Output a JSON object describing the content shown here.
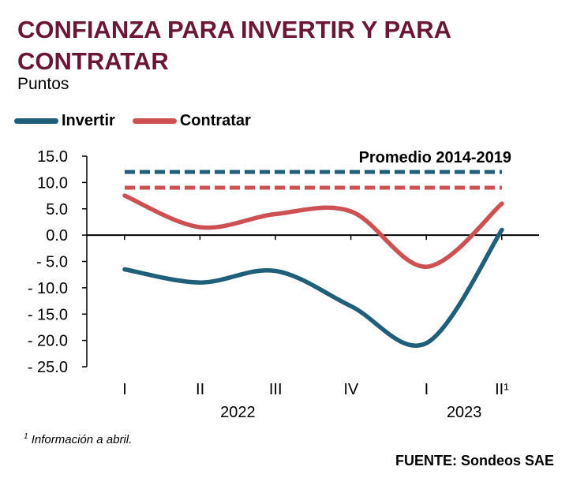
{
  "title": "CONFIANZA PARA INVERTIR Y PARA CONTRATAR",
  "subtitle": "Puntos",
  "footnote_mark": "1",
  "footnote_text": " Información a abril.",
  "source": "FUENTE: Sondeos SAE",
  "colors": {
    "title": "#6b1537",
    "invertir": "#1f5f7a",
    "contratar": "#cd5052"
  },
  "chart_data": {
    "type": "line",
    "categories": [
      "I",
      "II",
      "III",
      "IV",
      "I",
      "II¹"
    ],
    "years": [
      {
        "label": "2022",
        "span": [
          0,
          3
        ]
      },
      {
        "label": "2023",
        "span": [
          4,
          5
        ]
      }
    ],
    "series": [
      {
        "name": "Invertir",
        "color": "#1f5f7a",
        "values": [
          -6.5,
          -9.0,
          -6.8,
          -13.5,
          -20.5,
          1.0
        ]
      },
      {
        "name": "Contratar",
        "color": "#cd5052",
        "values": [
          7.5,
          1.5,
          4.0,
          4.5,
          -6.0,
          6.0
        ]
      }
    ],
    "averages": {
      "label": "Promedio 2014-2019",
      "lines": [
        {
          "series": "Invertir",
          "value": 12.0,
          "color": "#1f5f7a"
        },
        {
          "series": "Contratar",
          "value": 9.0,
          "color": "#cd5052"
        }
      ]
    },
    "ylim": [
      -25,
      15
    ],
    "yticks": [
      15.0,
      10.0,
      5.0,
      0.0,
      -5.0,
      -10.0,
      -15.0,
      -20.0,
      -25.0
    ],
    "ytick_labels": [
      "15.0",
      "10.0",
      "5.0",
      "0.0",
      "- 5.0",
      "- 10.0",
      "- 15.0",
      "- 20.0",
      "- 25.0"
    ],
    "legend_position": "top-left",
    "grid": false
  }
}
